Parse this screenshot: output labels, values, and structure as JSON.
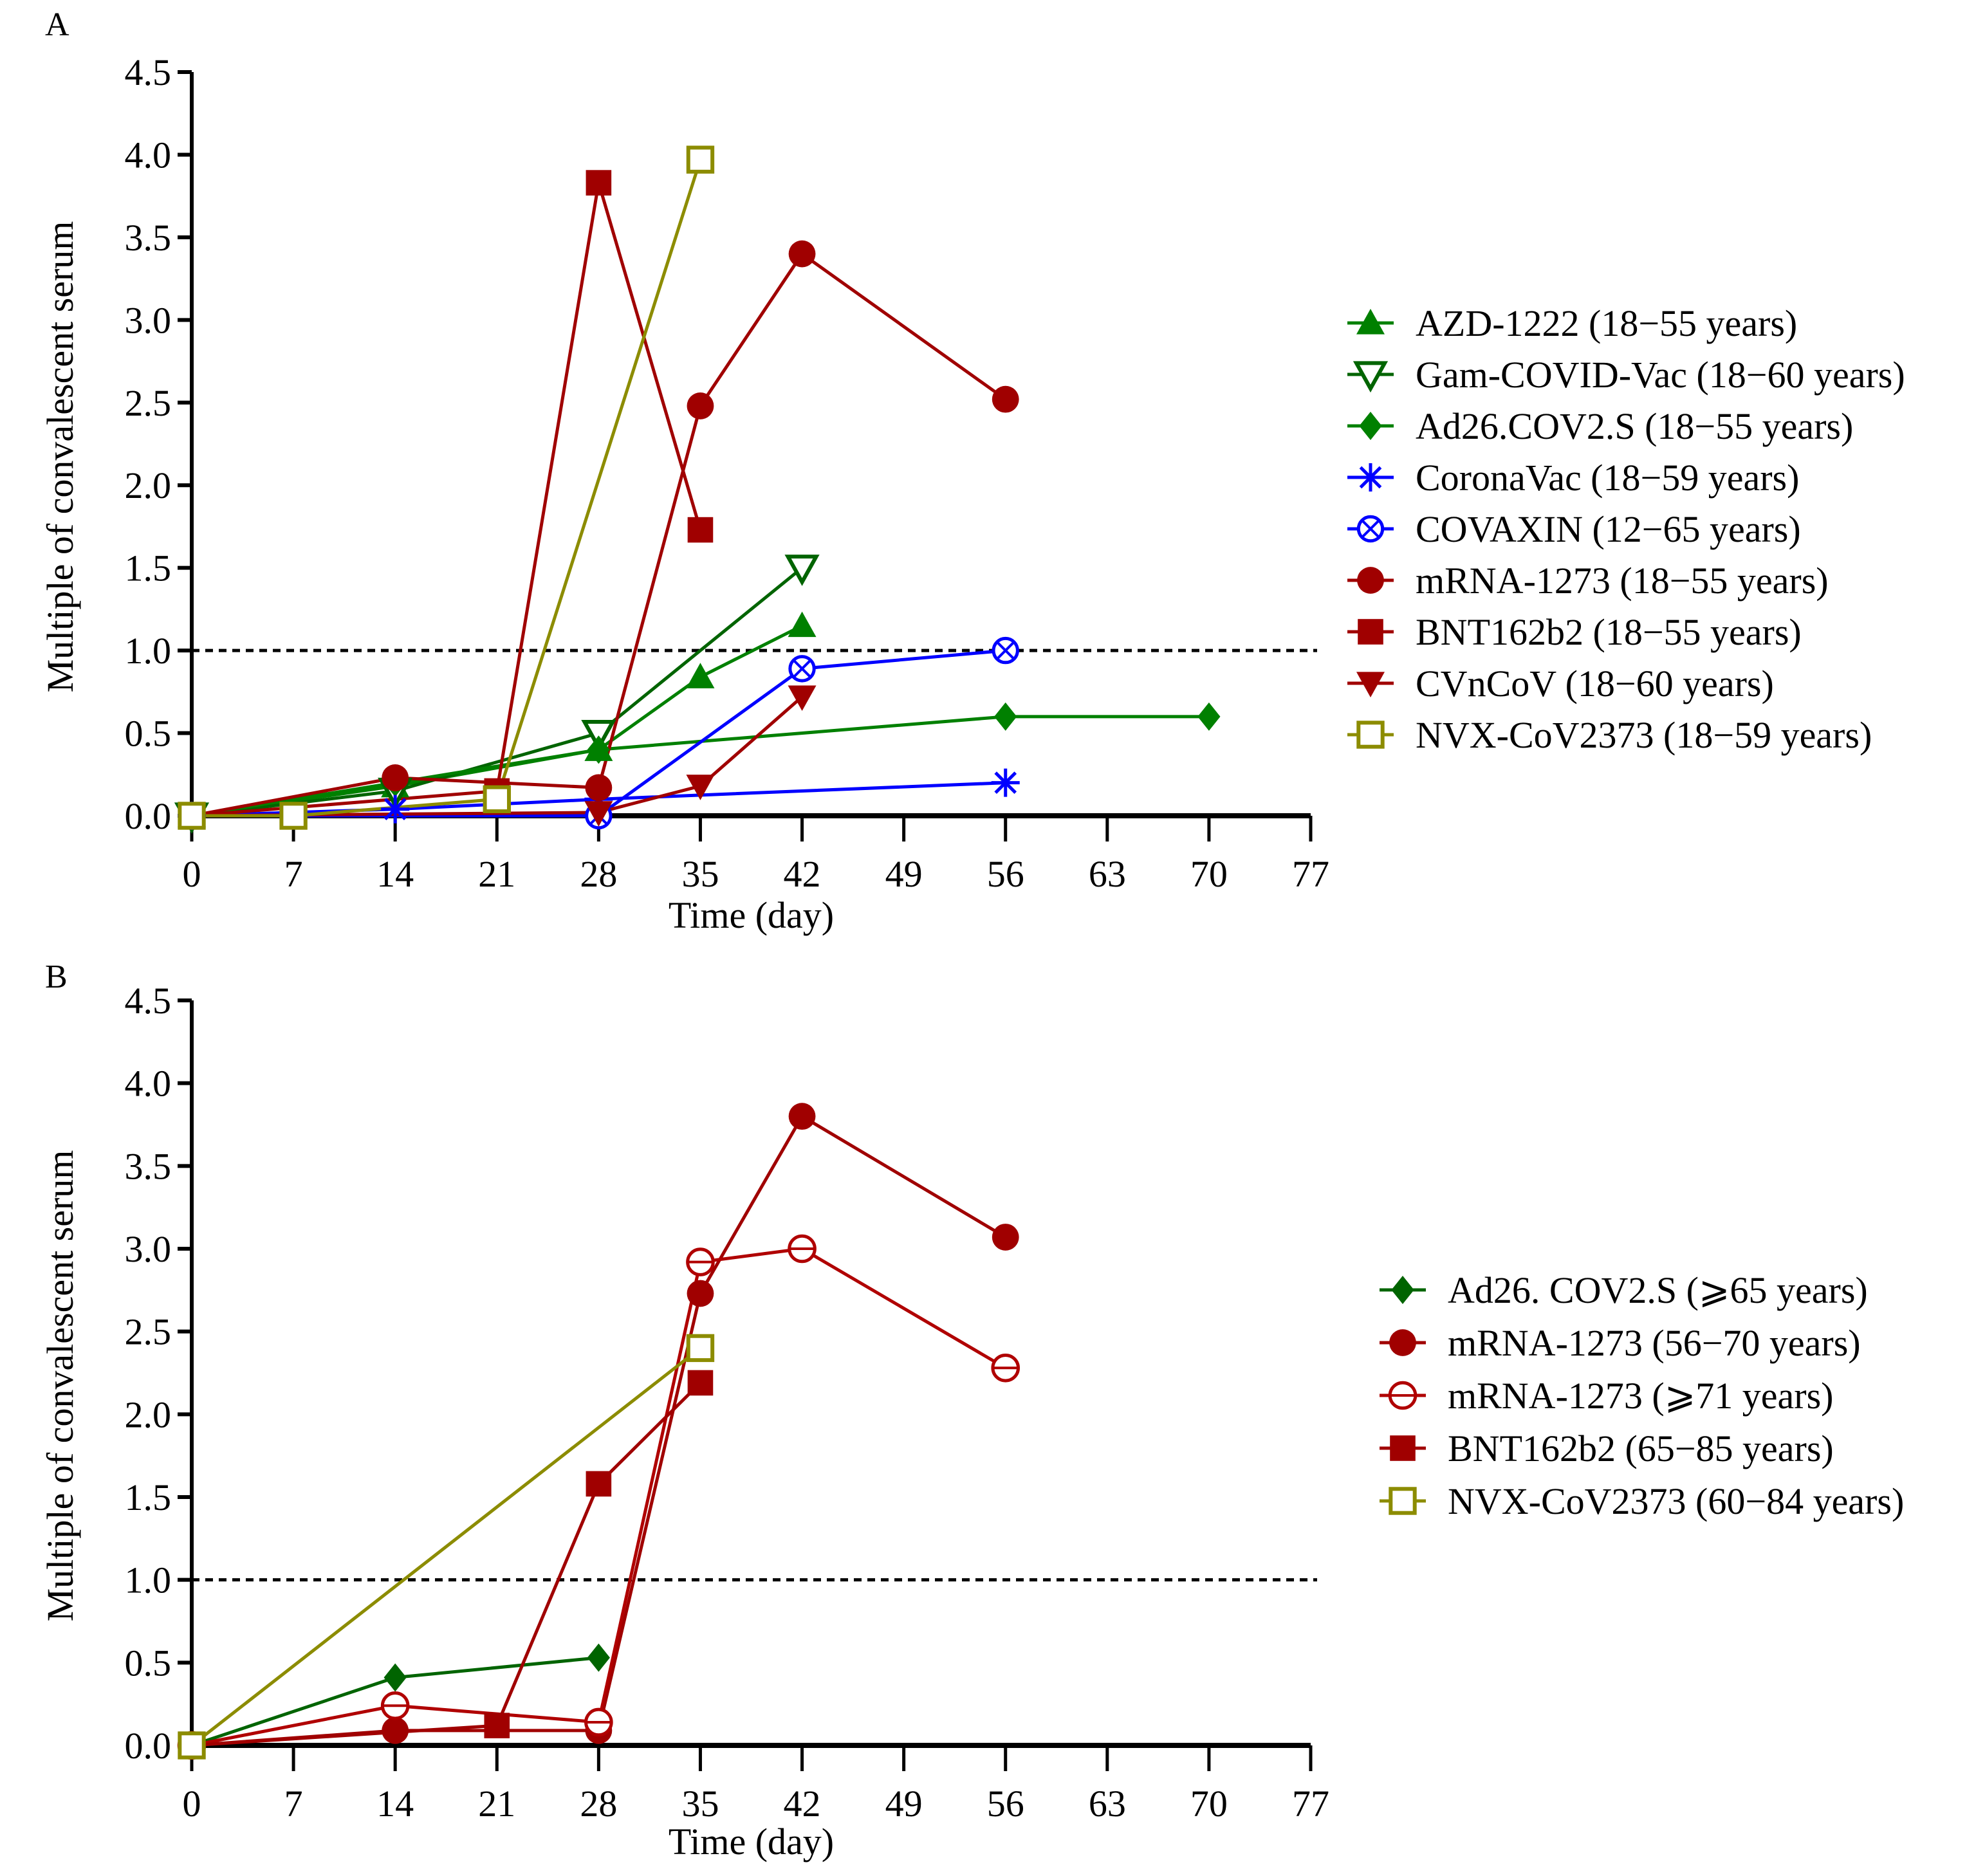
{
  "chart_data": [
    {
      "panel": "A",
      "type": "line",
      "xlabel": "Time (day)",
      "ylabel": "Multiple of convalescent serum",
      "xlim": [
        0,
        77
      ],
      "ylim": [
        0,
        4.5
      ],
      "xticks": [
        0,
        7,
        14,
        21,
        28,
        35,
        42,
        49,
        56,
        63,
        70,
        77
      ],
      "yticks": [
        "0.0",
        "0.5",
        "1.0",
        "1.5",
        "2.0",
        "2.5",
        "3.0",
        "3.5",
        "4.0",
        "4.5"
      ],
      "reference_line": 1.0,
      "legend_position": "right",
      "series": [
        {
          "name": "AZD-1222 (18−55 years)",
          "color": "#008000",
          "marker": "triangle-up-filled",
          "x": [
            0,
            14,
            28,
            35,
            42
          ],
          "y": [
            0,
            0.18,
            0.4,
            0.84,
            1.15
          ]
        },
        {
          "name": "Gam-COVID-Vac (18−60 years)",
          "color": "#006400",
          "marker": "triangle-down-open",
          "x": [
            0,
            14,
            28,
            42
          ],
          "y": [
            0,
            0.15,
            0.5,
            1.5
          ]
        },
        {
          "name": "Ad26.COV2.S (18−55 years)",
          "color": "#008000",
          "marker": "diamond-filled",
          "x": [
            0,
            14,
            28,
            56,
            70
          ],
          "y": [
            0,
            0.2,
            0.4,
            0.6,
            0.6
          ]
        },
        {
          "name": "CoronaVac (18−59 years)",
          "color": "#0000ff",
          "marker": "asterisk",
          "x": [
            0,
            14,
            28,
            56
          ],
          "y": [
            0,
            0.04,
            0.1,
            0.2
          ]
        },
        {
          "name": "COVAXIN (12−65 years)",
          "color": "#0000ff",
          "marker": "circle-x",
          "x": [
            0,
            28,
            42,
            56
          ],
          "y": [
            0,
            0.0,
            0.89,
            1.0
          ]
        },
        {
          "name": "mRNA-1273 (18−55 years)",
          "color": "#a00000",
          "marker": "circle-filled",
          "x": [
            0,
            14,
            28,
            35,
            42,
            56
          ],
          "y": [
            0,
            0.23,
            0.17,
            2.48,
            3.4,
            2.52
          ]
        },
        {
          "name": "BNT162b2 (18−55 years)",
          "color": "#a00000",
          "marker": "square-filled",
          "x": [
            0,
            21,
            28,
            35
          ],
          "y": [
            0,
            0.15,
            3.83,
            1.73
          ]
        },
        {
          "name": "CVnCoV (18−60 years)",
          "color": "#a00000",
          "marker": "triangle-down-filled",
          "x": [
            0,
            28,
            35,
            42
          ],
          "y": [
            0,
            0.02,
            0.18,
            0.72
          ]
        },
        {
          "name": "NVX-CoV2373 (18−59 years)",
          "color": "#8c8c00",
          "marker": "square-open",
          "x": [
            0,
            7,
            21,
            35
          ],
          "y": [
            0,
            0.0,
            0.1,
            3.97
          ]
        }
      ]
    },
    {
      "panel": "B",
      "type": "line",
      "xlabel": "Time (day)",
      "ylabel": "Multiple of convalescent serum",
      "xlim": [
        0,
        77
      ],
      "ylim": [
        0,
        4.5
      ],
      "xticks": [
        0,
        7,
        14,
        21,
        28,
        35,
        42,
        49,
        56,
        63,
        70,
        77
      ],
      "yticks": [
        "0.0",
        "0.5",
        "1.0",
        "1.5",
        "2.0",
        "2.5",
        "3.0",
        "3.5",
        "4.0",
        "4.5"
      ],
      "reference_line": 1.0,
      "legend_position": "right",
      "series": [
        {
          "name": "Ad26. COV2.S (⩾65 years)",
          "color": "#006400",
          "marker": "diamond-filled",
          "x": [
            0,
            14,
            28
          ],
          "y": [
            0,
            0.41,
            0.53
          ]
        },
        {
          "name": "mRNA-1273 (56−70 years)",
          "color": "#a00000",
          "marker": "circle-filled",
          "x": [
            0,
            14,
            28,
            35,
            42,
            56
          ],
          "y": [
            0,
            0.09,
            0.09,
            2.73,
            3.8,
            3.07
          ]
        },
        {
          "name": "mRNA-1273 (⩾71 years)",
          "color": "#b00000",
          "marker": "circle-open",
          "x": [
            0,
            14,
            28,
            35,
            42,
            56
          ],
          "y": [
            0,
            0.24,
            0.14,
            2.92,
            3.0,
            2.28
          ]
        },
        {
          "name": "BNT162b2 (65−85 years)",
          "color": "#a00000",
          "marker": "square-filled",
          "x": [
            0,
            21,
            28,
            35
          ],
          "y": [
            0,
            0.12,
            1.58,
            2.19
          ]
        },
        {
          "name": "NVX-CoV2373 (60−84 years)",
          "color": "#8c8c00",
          "marker": "square-open",
          "x": [
            0,
            35
          ],
          "y": [
            0,
            2.4
          ]
        }
      ]
    }
  ]
}
